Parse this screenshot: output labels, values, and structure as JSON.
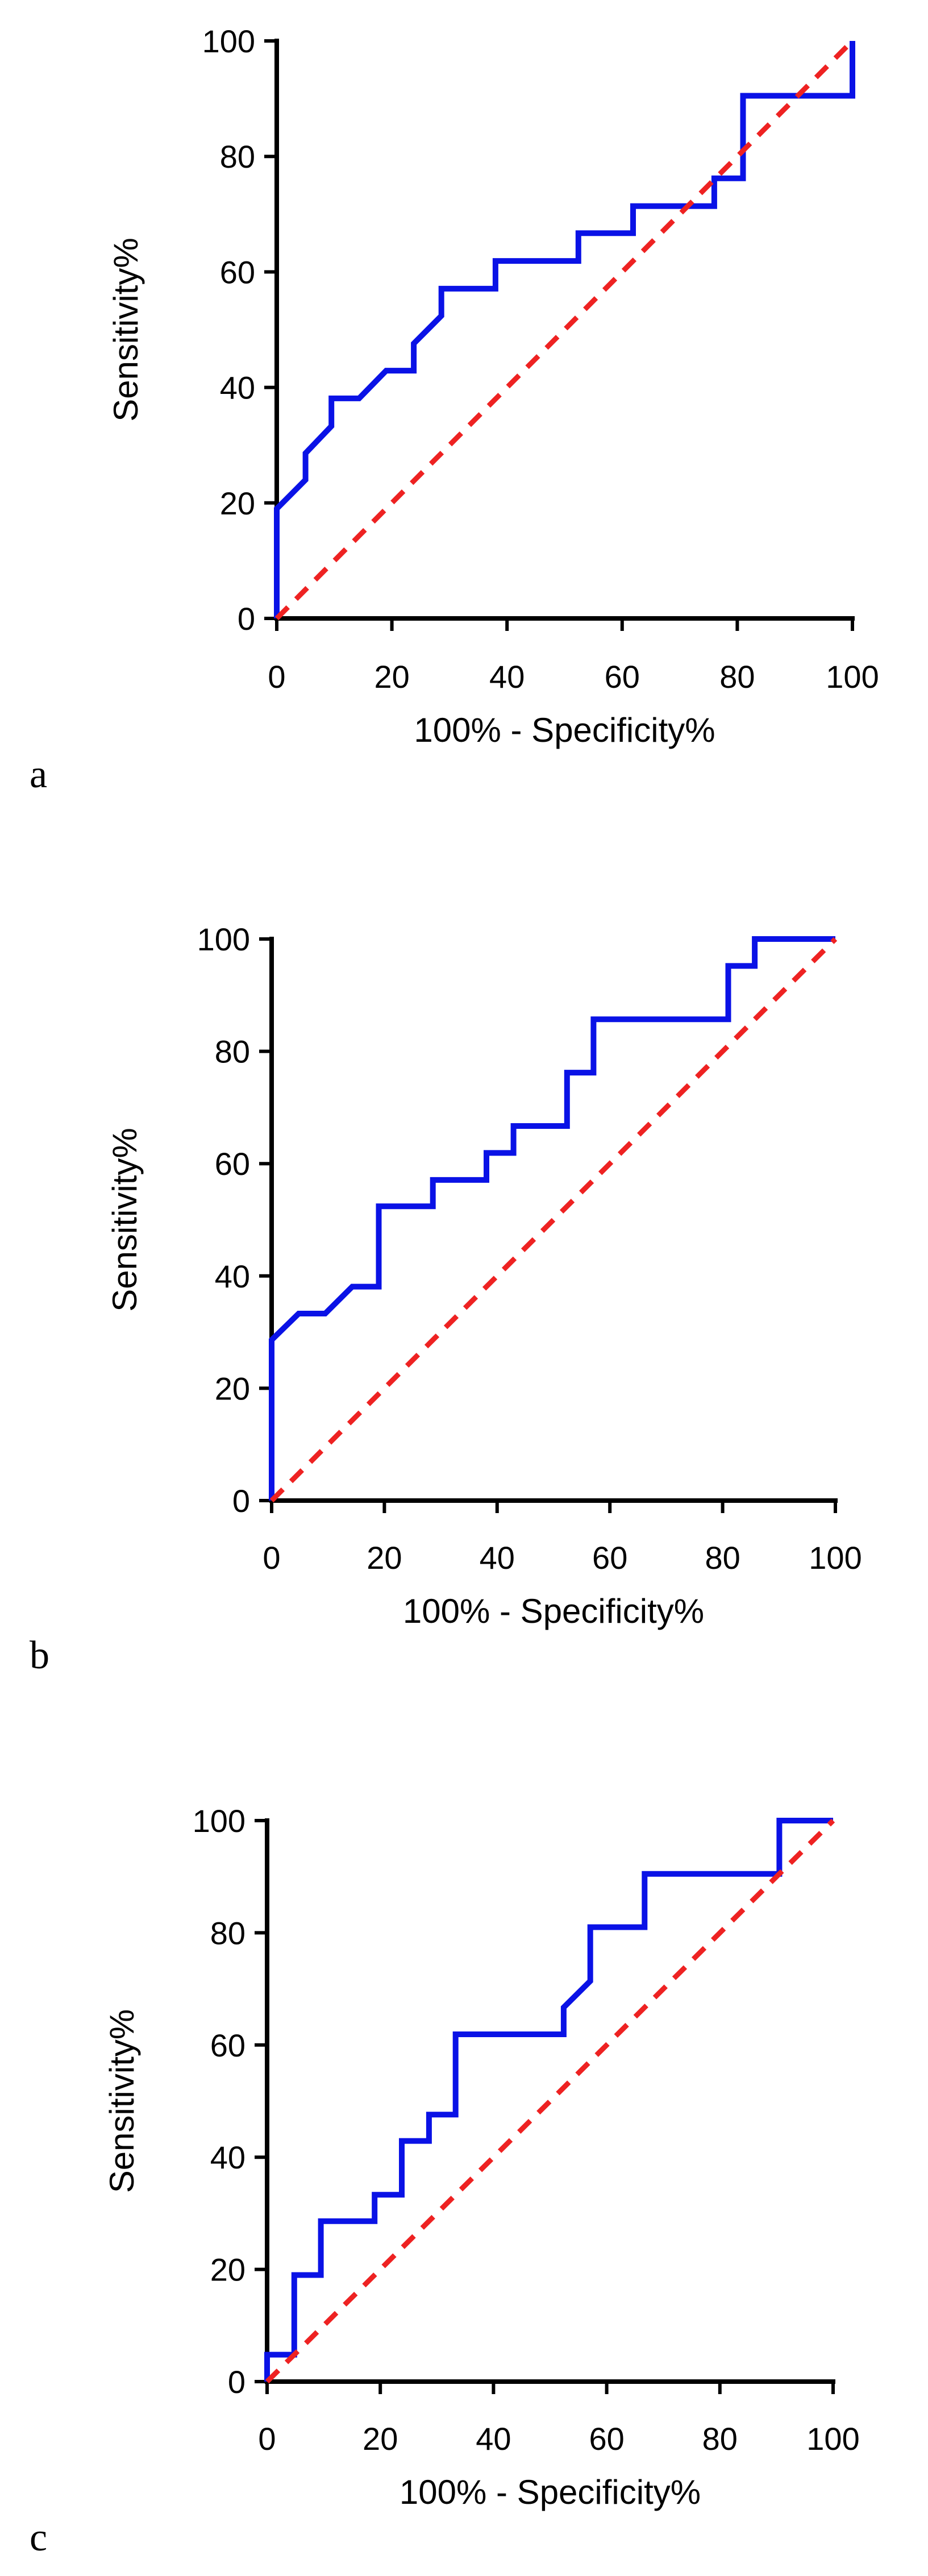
{
  "chart_data": [
    {
      "type": "line",
      "panel_label": "a",
      "xlabel": "100% - Specificity%",
      "ylabel": "Sensitivity%",
      "xlim": [
        0,
        100
      ],
      "ylim": [
        0,
        100
      ],
      "xticks": [
        "0",
        "20",
        "40",
        "60",
        "80",
        "100"
      ],
      "yticks": [
        "0",
        "20",
        "40",
        "60",
        "80",
        "100"
      ],
      "series": [
        {
          "name": "ROC curve",
          "color": "#0a12e6",
          "x": [
            0,
            0,
            5,
            5,
            9.5,
            9.5,
            14.3,
            19,
            23.8,
            23.8,
            28.6,
            28.6,
            38,
            38,
            52.4,
            52.4,
            61.9,
            61.9,
            76,
            76,
            81,
            81,
            100,
            100
          ],
          "y": [
            0,
            19,
            24,
            28.6,
            33.3,
            38.1,
            38.1,
            42.9,
            42.9,
            47.6,
            52.4,
            57.1,
            57.1,
            61.9,
            61.9,
            66.7,
            66.7,
            71.4,
            71.4,
            76.2,
            76.2,
            90.5,
            90.5,
            100
          ]
        },
        {
          "name": "Reference line",
          "color": "#ee2222",
          "style": "dashed",
          "x": [
            0,
            100
          ],
          "y": [
            0,
            100
          ]
        }
      ]
    },
    {
      "type": "line",
      "panel_label": "b",
      "xlabel": "100% - Specificity%",
      "ylabel": "Sensitivity%",
      "xlim": [
        0,
        100
      ],
      "ylim": [
        0,
        100
      ],
      "xticks": [
        "0",
        "20",
        "40",
        "60",
        "80",
        "100"
      ],
      "yticks": [
        "0",
        "20",
        "40",
        "60",
        "80",
        "100"
      ],
      "series": [
        {
          "name": "ROC curve",
          "color": "#0a12e6",
          "x": [
            0,
            0,
            4.8,
            9.5,
            14.3,
            19,
            19,
            28.6,
            28.6,
            38.1,
            38.1,
            42.9,
            42.9,
            52.4,
            52.4,
            57.1,
            57.1,
            81,
            81,
            85.7,
            85.7,
            100
          ],
          "y": [
            0,
            28.6,
            33.3,
            33.3,
            38.1,
            38.1,
            52.4,
            52.4,
            57.1,
            57.1,
            61.9,
            61.9,
            66.7,
            66.7,
            76.2,
            76.2,
            85.7,
            85.7,
            95.2,
            95.2,
            100,
            100
          ]
        },
        {
          "name": "Reference line",
          "color": "#ee2222",
          "style": "dashed",
          "x": [
            0,
            100
          ],
          "y": [
            0,
            100
          ]
        }
      ]
    },
    {
      "type": "line",
      "panel_label": "c",
      "xlabel": "100% - Specificity%",
      "ylabel": "Sensitivity%",
      "xlim": [
        0,
        100
      ],
      "ylim": [
        0,
        100
      ],
      "xticks": [
        "0",
        "20",
        "40",
        "60",
        "80",
        "100"
      ],
      "yticks": [
        "0",
        "20",
        "40",
        "60",
        "80",
        "100"
      ],
      "series": [
        {
          "name": "ROC curve",
          "color": "#0a12e6",
          "x": [
            0,
            0,
            4.8,
            4.8,
            9.5,
            9.5,
            19,
            19,
            23.8,
            23.8,
            28.6,
            28.6,
            33.3,
            33.3,
            52.4,
            52.4,
            57.1,
            57.1,
            66.7,
            66.7,
            90.5,
            90.5,
            100
          ],
          "y": [
            0,
            4.8,
            4.8,
            19,
            19,
            28.6,
            28.6,
            33.3,
            33.3,
            42.9,
            42.9,
            47.6,
            47.6,
            61.9,
            61.9,
            66.7,
            71.4,
            81,
            81,
            90.5,
            90.5,
            100,
            100
          ]
        },
        {
          "name": "Reference line",
          "color": "#ee2222",
          "style": "dashed",
          "x": [
            0,
            100
          ],
          "y": [
            0,
            100
          ]
        }
      ]
    }
  ]
}
